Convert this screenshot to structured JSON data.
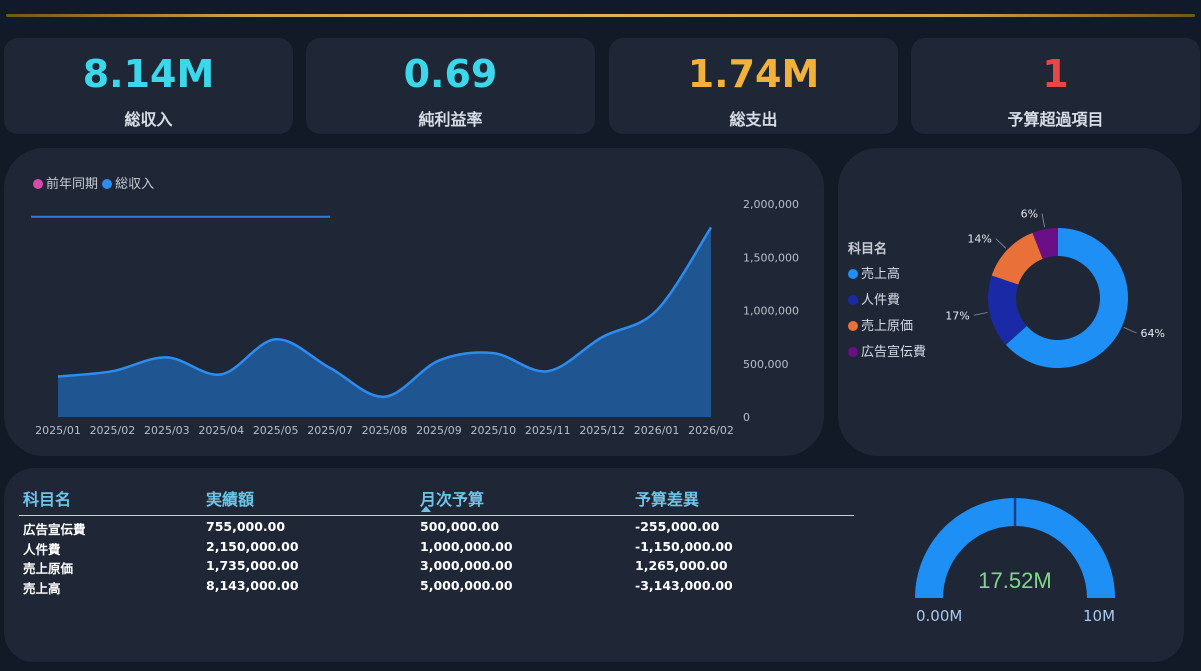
{
  "kpis": [
    {
      "value": "8.14M",
      "label": "総収入",
      "color": "#3ad8ea"
    },
    {
      "value": "0.69",
      "label": "純利益率",
      "color": "#3ad8ea"
    },
    {
      "value": "1.74M",
      "label": "総支出",
      "color": "#f2b23a"
    },
    {
      "value": "1",
      "label": "予算超過項目",
      "color": "#e8474a"
    }
  ],
  "line_chart": {
    "legend": [
      {
        "name": "前年同期",
        "color": "#d84ba8"
      },
      {
        "name": "総収入",
        "color": "#2d8cf0"
      }
    ],
    "y_ticks": [
      "2,000,000",
      "1,500,000",
      "1,000,000",
      "500,000",
      "0"
    ]
  },
  "donut_chart": {
    "legend_title": "科目名",
    "legend": [
      {
        "name": "売上高",
        "color": "#1e8ff5"
      },
      {
        "name": "人件費",
        "color": "#1a2aa6"
      },
      {
        "name": "売上原価",
        "color": "#ea7039"
      },
      {
        "name": "広告宣伝費",
        "color": "#6b0f86"
      }
    ],
    "labels": [
      "64%",
      "17%",
      "14%",
      "6%"
    ]
  },
  "table": {
    "headers": [
      "科目名",
      "実績額",
      "月次予算",
      "予算差異"
    ],
    "sorted_column": "月次予算",
    "rows": [
      [
        "広告宣伝費",
        "755,000.00",
        "500,000.00",
        "-255,000.00"
      ],
      [
        "人件費",
        "2,150,000.00",
        "1,000,000.00",
        "-1,150,000.00"
      ],
      [
        "売上原価",
        "1,735,000.00",
        "3,000,000.00",
        "1,265,000.00"
      ],
      [
        "売上高",
        "8,143,000.00",
        "5,000,000.00",
        "-3,143,000.00"
      ]
    ]
  },
  "gauge": {
    "value_label": "17.52M",
    "min_label": "0.00M",
    "max_label": "10M",
    "value": 17.52,
    "min": 0,
    "max": 10,
    "target": 10,
    "color": "#1e8ff5"
  },
  "chart_data": [
    {
      "type": "area",
      "x": [
        "2025/01",
        "2025/02",
        "2025/03",
        "2025/04",
        "2025/05",
        "2025/07",
        "2025/08",
        "2025/09",
        "2025/10",
        "2025/11",
        "2025/12",
        "2026/01",
        "2026/02"
      ],
      "series": [
        {
          "name": "総収入",
          "values": [
            380000,
            430000,
            560000,
            400000,
            730000,
            460000,
            190000,
            530000,
            600000,
            430000,
            750000,
            1000000,
            1780000
          ]
        },
        {
          "name": "前年同期",
          "values": [
            1880000,
            1880000,
            1880000,
            1880000,
            1880000,
            1880000,
            null,
            null,
            null,
            null,
            null,
            null,
            null
          ]
        }
      ],
      "ylim": [
        0,
        2000000
      ]
    },
    {
      "type": "pie",
      "categories": [
        "売上高",
        "人件費",
        "売上原価",
        "広告宣伝費"
      ],
      "values": [
        64,
        17,
        14,
        6
      ]
    }
  ]
}
